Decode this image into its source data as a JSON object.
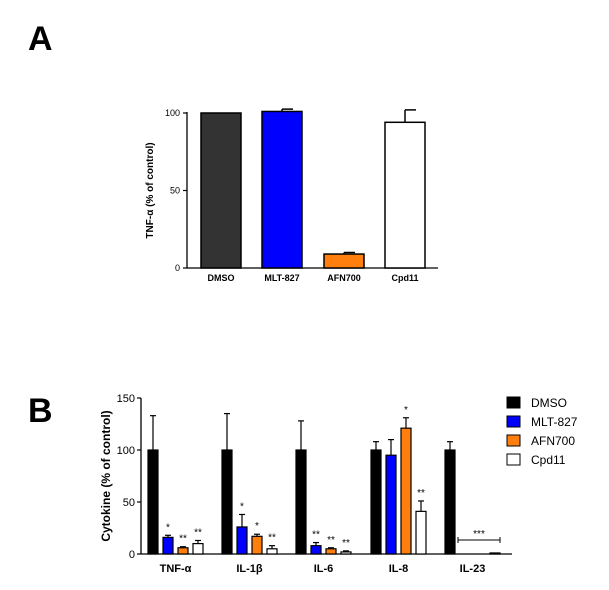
{
  "panels": {
    "a": "A",
    "b": "B"
  },
  "chart_data": [
    {
      "type": "bar",
      "title": "",
      "xlabel": "",
      "ylabel": "TNF-α (% of control)",
      "categories": [
        "DMSO",
        "MLT-827",
        "AFN700",
        "Cpd11"
      ],
      "values": [
        100,
        101,
        9,
        94
      ],
      "errors": [
        0,
        1.5,
        1,
        8
      ],
      "colors": [
        "#333333",
        "#0000ff",
        "#ff7f0e",
        "#ffffff"
      ],
      "ylim": [
        0,
        100
      ],
      "yticks": [
        "0",
        "50",
        "100"
      ],
      "grid": false
    },
    {
      "type": "bar",
      "title": "",
      "xlabel": "",
      "ylabel": "Cytokine (% of control)",
      "categories": [
        "TNF-α",
        "IL-1β",
        "IL-6",
        "IL-8",
        "IL-23"
      ],
      "ylim": [
        0,
        150
      ],
      "yticks": [
        "0",
        "50",
        "100",
        "150"
      ],
      "grid": false,
      "legend_position": "top-right",
      "series": [
        {
          "name": "DMSO",
          "color": "#000000",
          "values": [
            100,
            100,
            100,
            100,
            100
          ],
          "errors": [
            33,
            35,
            28,
            8,
            8
          ],
          "sig": [
            "",
            "",
            "",
            "",
            ""
          ]
        },
        {
          "name": "MLT-827",
          "color": "#0000ff",
          "values": [
            16,
            26,
            8,
            95,
            0
          ],
          "errors": [
            2,
            12,
            3,
            15,
            0
          ],
          "sig": [
            "*",
            "*",
            "**",
            "",
            ""
          ]
        },
        {
          "name": "AFN700",
          "color": "#ff7f0e",
          "values": [
            6,
            17,
            5,
            121,
            0
          ],
          "errors": [
            1,
            2,
            1,
            10,
            0
          ],
          "sig": [
            "**",
            "*",
            "**",
            "*",
            ""
          ]
        },
        {
          "name": "Cpd11",
          "color": "#ffffff",
          "values": [
            10,
            5,
            2,
            41,
            1
          ],
          "errors": [
            3,
            3,
            1,
            10,
            0
          ],
          "sig": [
            "**",
            "**",
            "**",
            "**",
            ""
          ]
        }
      ],
      "bracket_label": "***"
    }
  ]
}
